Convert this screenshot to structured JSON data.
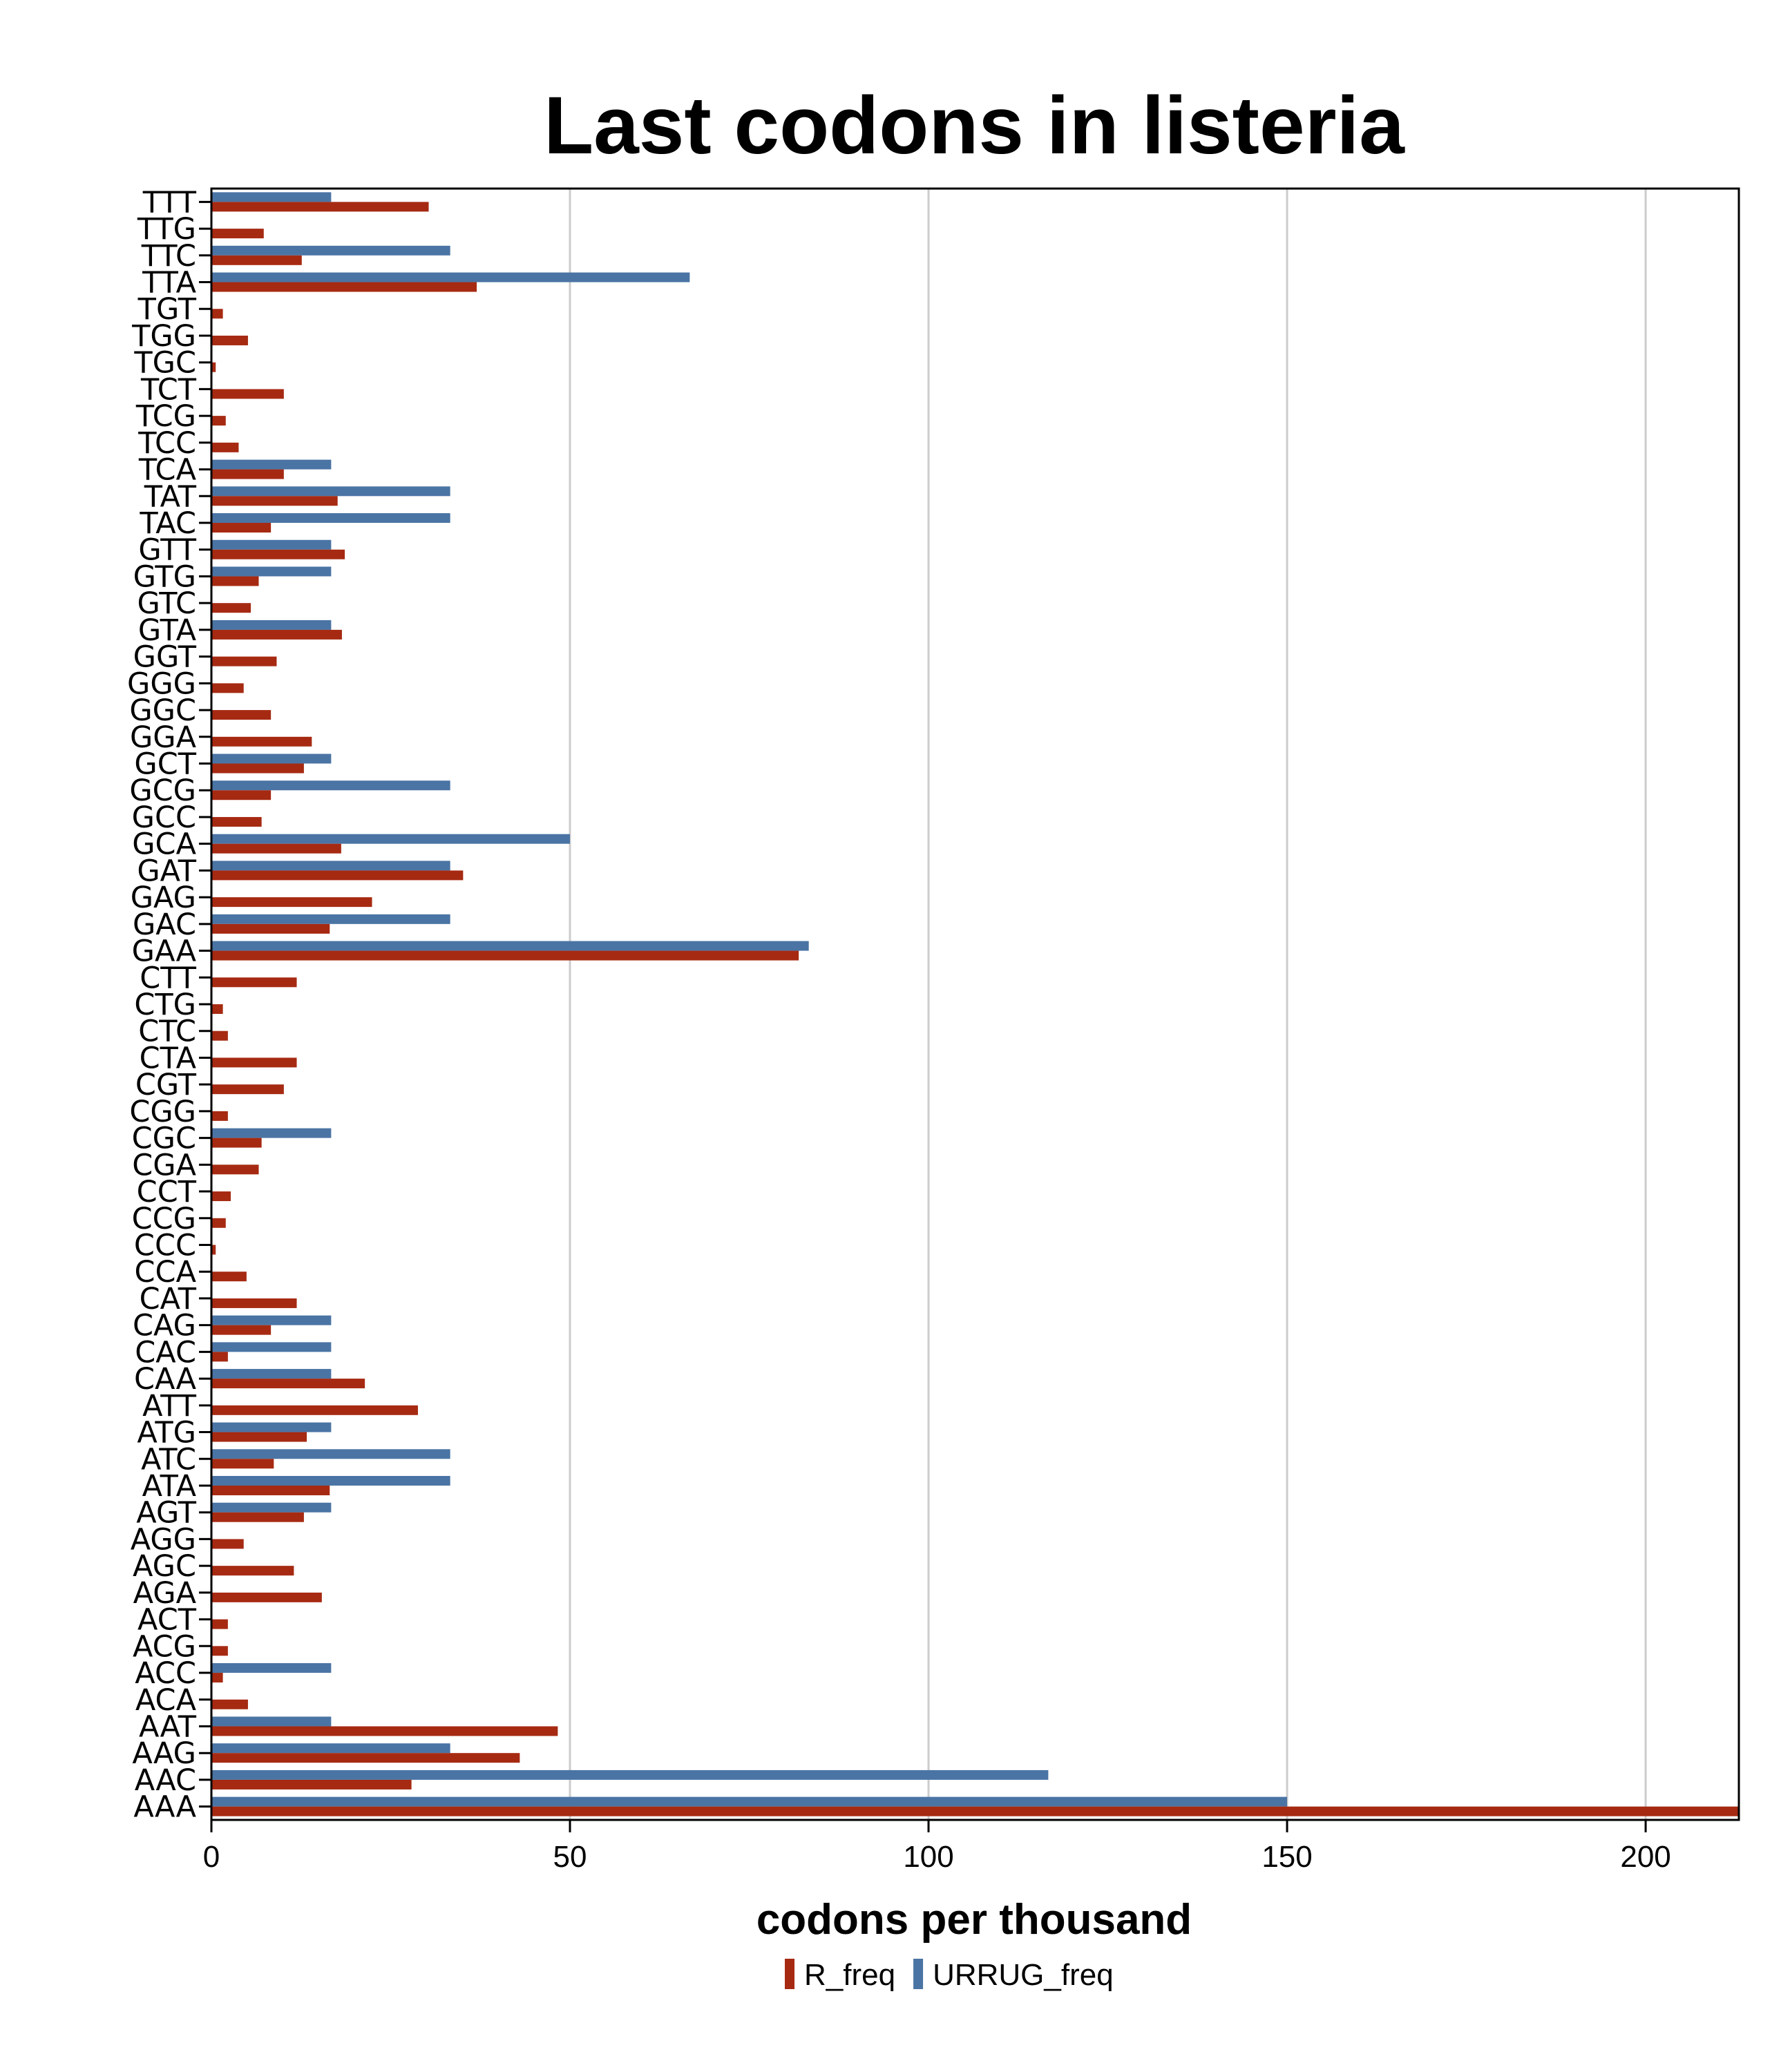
{
  "chart_data": {
    "type": "bar",
    "orientation": "horizontal",
    "title": "Last codons in listeria",
    "xlabel": "codons per thousand",
    "ylabel": "",
    "xlim": [
      0,
      213
    ],
    "xticks": [
      0,
      50,
      100,
      150,
      200
    ],
    "grid": true,
    "legend_position": "bottom",
    "categories": [
      "TTT",
      "TTG",
      "TTC",
      "TTA",
      "TGT",
      "TGG",
      "TGC",
      "TCT",
      "TCG",
      "TCC",
      "TCA",
      "TAT",
      "TAC",
      "GTT",
      "GTG",
      "GTC",
      "GTA",
      "GGT",
      "GGG",
      "GGC",
      "GGA",
      "GCT",
      "GCG",
      "GCC",
      "GCA",
      "GAT",
      "GAG",
      "GAC",
      "GAA",
      "CTT",
      "CTG",
      "CTC",
      "CTA",
      "CGT",
      "CGG",
      "CGC",
      "CGA",
      "CCT",
      "CCG",
      "CCC",
      "CCA",
      "CAT",
      "CAG",
      "CAC",
      "CAA",
      "ATT",
      "ATG",
      "ATC",
      "ATA",
      "AGT",
      "AGG",
      "AGC",
      "AGA",
      "ACT",
      "ACG",
      "ACC",
      "ACA",
      "AAT",
      "AAG",
      "AAC",
      "AAA"
    ],
    "series": [
      {
        "name": "R_freq",
        "color": "#a62a12",
        "values": [
          30.3,
          7.3,
          12.6,
          37.0,
          1.6,
          5.1,
          0.6,
          10.1,
          2.0,
          3.8,
          10.1,
          17.6,
          8.3,
          18.6,
          6.6,
          5.5,
          18.2,
          9.1,
          4.5,
          8.3,
          14.0,
          12.9,
          8.3,
          7.0,
          18.1,
          35.1,
          22.4,
          16.5,
          81.9,
          11.9,
          1.6,
          2.3,
          11.9,
          10.1,
          2.3,
          7.0,
          6.6,
          2.7,
          2.0,
          0.6,
          4.9,
          11.9,
          8.3,
          2.3,
          21.4,
          28.8,
          13.3,
          8.7,
          16.5,
          12.9,
          4.5,
          11.5,
          15.4,
          2.3,
          2.3,
          1.6,
          5.1,
          48.3,
          43.0,
          27.9,
          213.0
        ]
      },
      {
        "name": "URRUG_freq",
        "color": "#4a74a4",
        "values": [
          16.7,
          0,
          33.3,
          66.7,
          0,
          0,
          0,
          0,
          0,
          0,
          16.7,
          33.3,
          33.3,
          16.7,
          16.7,
          0,
          16.7,
          0,
          0,
          0,
          0,
          16.7,
          33.3,
          0,
          50.0,
          33.3,
          0,
          33.3,
          83.3,
          0,
          0,
          0,
          0,
          0,
          0,
          16.7,
          0,
          0,
          0,
          0,
          0,
          0,
          16.7,
          16.7,
          16.7,
          0,
          16.7,
          33.3,
          33.3,
          16.7,
          0,
          0,
          0,
          0,
          0,
          16.7,
          0,
          16.7,
          33.3,
          116.7,
          150.0
        ]
      }
    ]
  }
}
